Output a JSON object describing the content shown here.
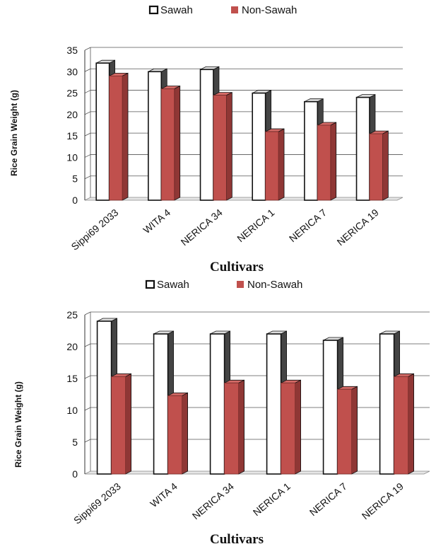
{
  "chart_data": [
    {
      "type": "bar",
      "title": "",
      "xlabel": "Cultivars",
      "ylabel": "Rice Grain Weight (g)",
      "categories": [
        "Sippi69 2033",
        "WITA 4",
        "NERICA 34",
        "NERICA 1",
        "NERICA 7",
        "NERICA 19"
      ],
      "ylim": [
        0,
        35
      ],
      "yticks": [
        0,
        5,
        10,
        15,
        20,
        25,
        30,
        35
      ],
      "grid": true,
      "legend": "top",
      "series": [
        {
          "name": "Sawah",
          "color": "#ffffff",
          "values": [
            32,
            30,
            30.5,
            25,
            23,
            24
          ]
        },
        {
          "name": "Non-Sawah",
          "color": "#c0504d",
          "values": [
            29,
            26,
            24.5,
            16,
            17.5,
            15.5
          ]
        }
      ]
    },
    {
      "type": "bar",
      "title": "",
      "xlabel": "Cultivars",
      "ylabel": "Rice Grain Weight (g)",
      "categories": [
        "Sippi69 2033",
        "WITA 4",
        "NERICA 34",
        "NERICA 1",
        "NERICA 7",
        "NERICA 19"
      ],
      "ylim": [
        0,
        25
      ],
      "yticks": [
        0,
        5,
        10,
        15,
        20,
        25
      ],
      "grid": true,
      "legend": "top",
      "series": [
        {
          "name": "Sawah",
          "color": "#ffffff",
          "values": [
            24,
            22,
            22,
            22,
            21,
            22
          ]
        },
        {
          "name": "Non-Sawah",
          "color": "#c0504d",
          "values": [
            15.3,
            12.3,
            14.3,
            14.3,
            13.3,
            15.3
          ]
        }
      ]
    }
  ]
}
